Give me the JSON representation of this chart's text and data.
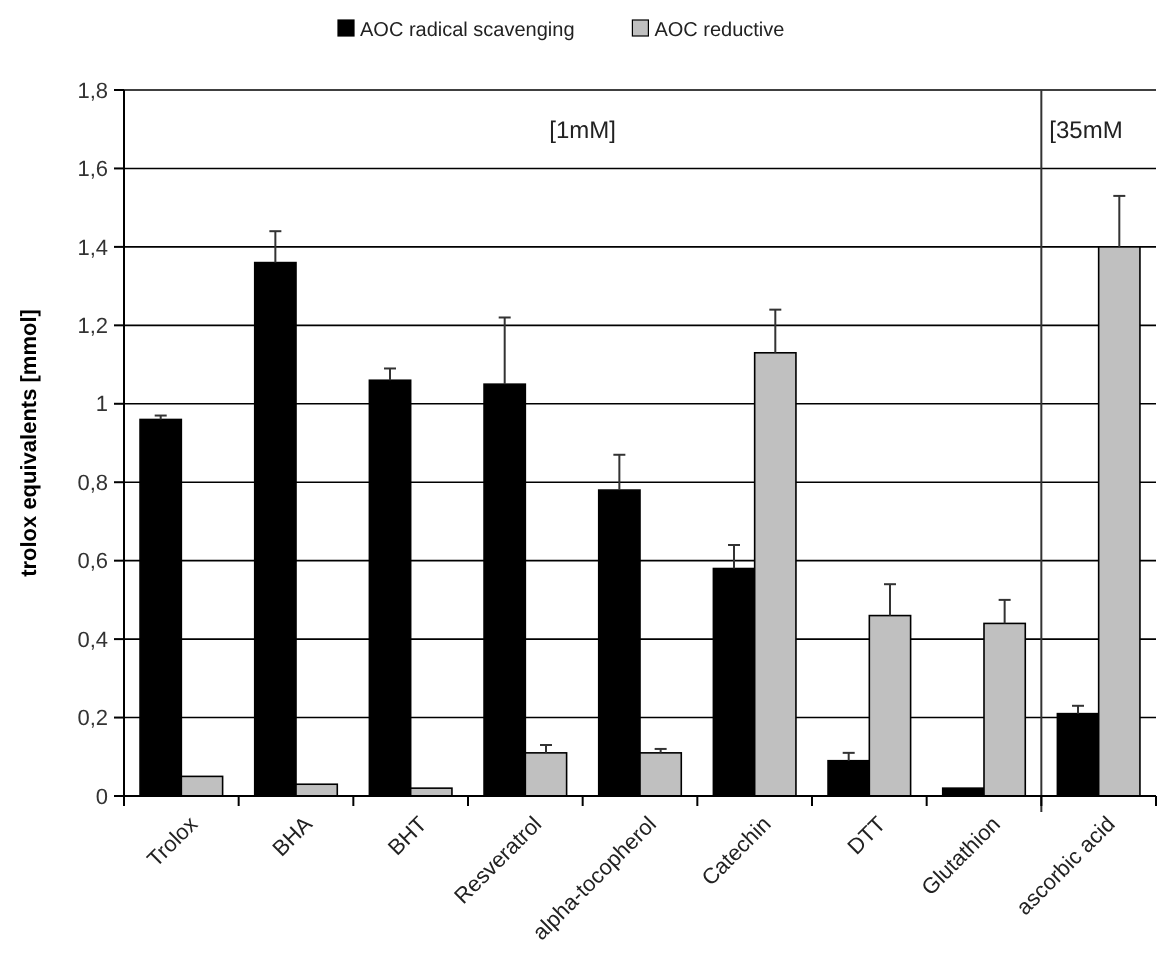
{
  "chart_data": {
    "type": "bar",
    "ylabel": "trolox equivalents [mmol]",
    "categories": [
      "Trolox",
      "BHA",
      "BHT",
      "Resveratrol",
      "alpha-tocopherol",
      "Catechin",
      "DTT",
      "Glutathion",
      "ascorbic acid"
    ],
    "series": [
      {
        "name": "AOC radical scavenging",
        "color": "#000000",
        "values": [
          0.96,
          1.36,
          1.06,
          1.05,
          0.78,
          0.58,
          0.09,
          0.02,
          0.21
        ],
        "errors": [
          0.01,
          0.08,
          0.03,
          0.17,
          0.09,
          0.06,
          0.02,
          null,
          0.02
        ]
      },
      {
        "name": "AOC reductive",
        "color": "#c0c0c0",
        "values": [
          0.05,
          0.03,
          0.02,
          0.11,
          0.11,
          1.13,
          0.46,
          0.44,
          1.4
        ],
        "errors": [
          null,
          null,
          null,
          0.02,
          0.01,
          0.11,
          0.08,
          0.06,
          0.13
        ]
      }
    ],
    "ylim": [
      0,
      1.8
    ],
    "yticks": [
      0,
      {
        "value": 0.2,
        "label": "0,2"
      },
      {
        "value": 0.4,
        "label": "0,4"
      },
      {
        "value": 0.6,
        "label": "0,6"
      },
      {
        "value": 0.8,
        "label": "0,8"
      },
      1,
      {
        "value": 1.2,
        "label": "1,2"
      },
      {
        "value": 1.4,
        "label": "1,4"
      },
      {
        "value": 1.6,
        "label": "1,6"
      },
      {
        "value": 1.8,
        "label": "1,8"
      }
    ],
    "annotations": [
      "[1mM]",
      "[35mM"
    ],
    "ref_lines": [
      {
        "axis": "x",
        "value": "ascorbic acid"
      }
    ],
    "grid": "y",
    "legend": "top"
  }
}
